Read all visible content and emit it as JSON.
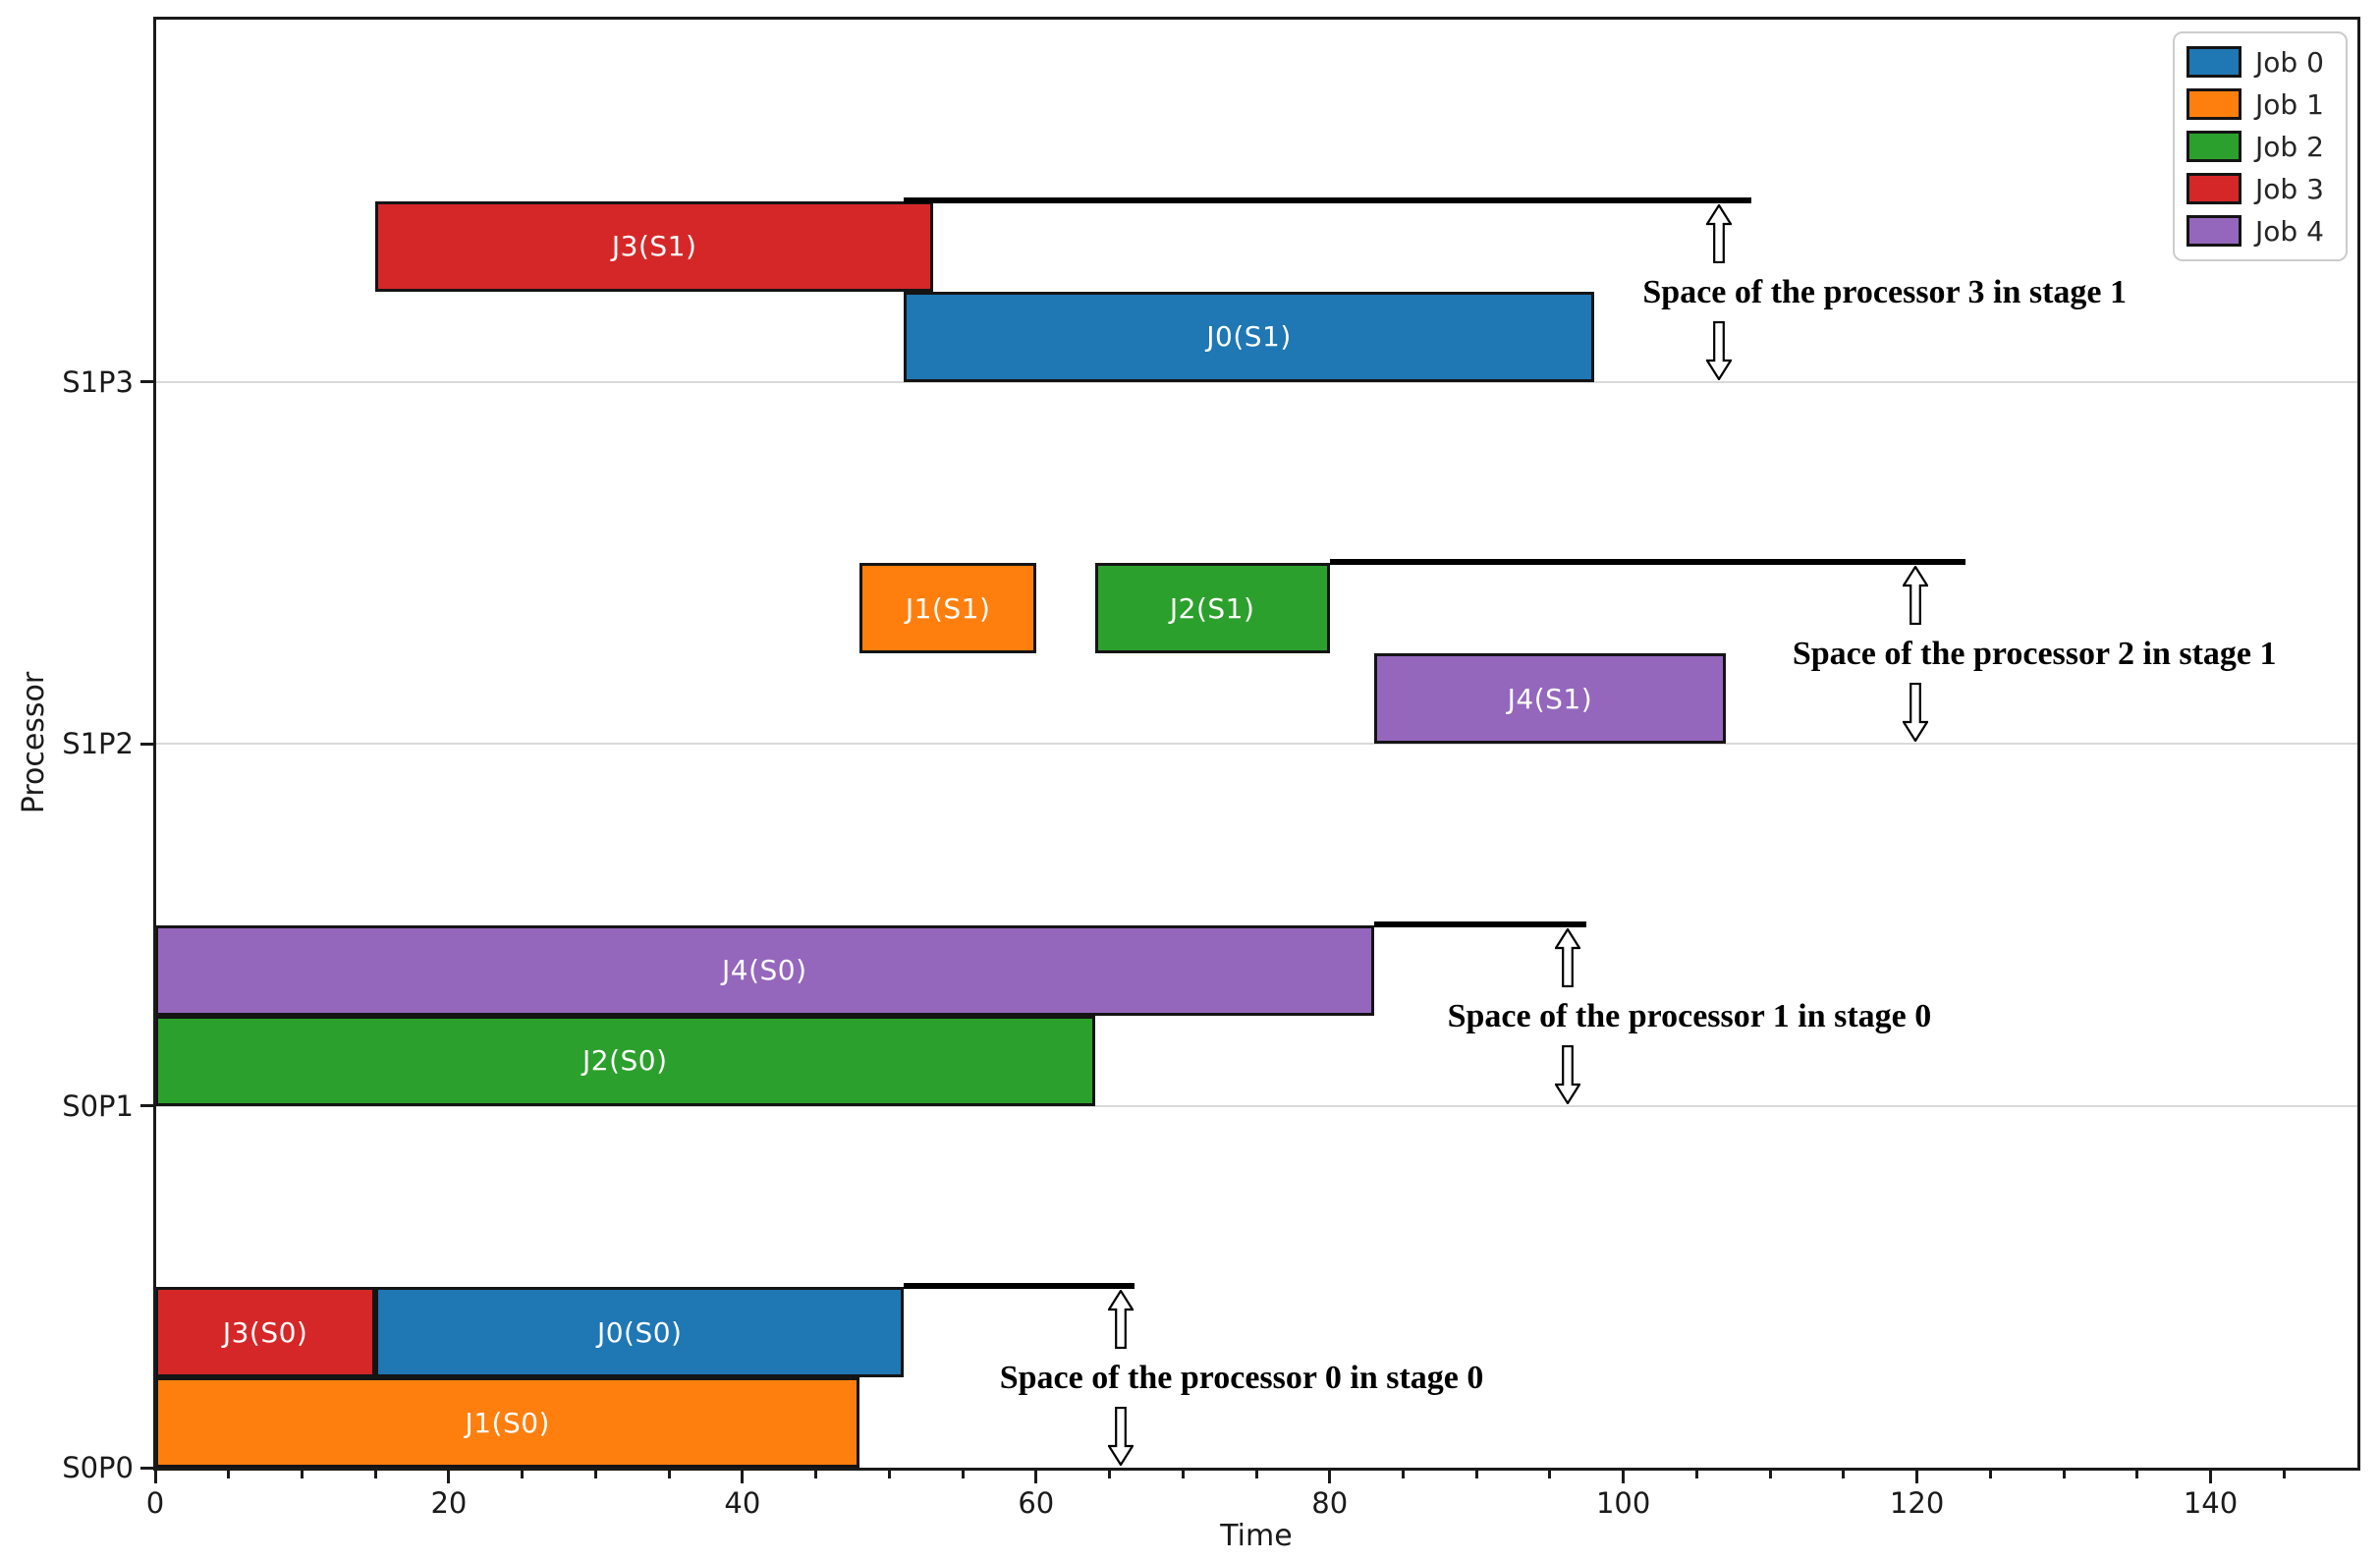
{
  "chart_data": {
    "type": "bar",
    "subtype": "gantt-broken-barh",
    "title": "",
    "xlabel": "Time",
    "ylabel": "Processor",
    "xlim": [
      0,
      150
    ],
    "x_major_ticks": [
      0,
      20,
      40,
      60,
      80,
      100,
      120,
      140
    ],
    "x_minor_step": 5,
    "grid": "horizontal-light-gray",
    "legend_position": "upper-right",
    "rows": [
      "S0P0",
      "S0P1",
      "S1P2",
      "S1P3"
    ],
    "jobs": [
      {
        "name": "Job 0",
        "color": "#1f77b4"
      },
      {
        "name": "Job 1",
        "color": "#ff7f0e"
      },
      {
        "name": "Job 2",
        "color": "#2ca02c"
      },
      {
        "name": "Job 3",
        "color": "#d62728"
      },
      {
        "name": "Job 4",
        "color": "#9467bd"
      }
    ],
    "tasks": [
      {
        "row": "S0P0",
        "lane": "upper",
        "job": 3,
        "label": "J3(S0)",
        "start": 0,
        "end": 15
      },
      {
        "row": "S0P0",
        "lane": "upper",
        "job": 0,
        "label": "J0(S0)",
        "start": 15,
        "end": 51
      },
      {
        "row": "S0P0",
        "lane": "lower",
        "job": 1,
        "label": "J1(S0)",
        "start": 0,
        "end": 48
      },
      {
        "row": "S0P1",
        "lane": "upper",
        "job": 4,
        "label": "J4(S0)",
        "start": 0,
        "end": 83
      },
      {
        "row": "S0P1",
        "lane": "lower",
        "job": 2,
        "label": "J2(S0)",
        "start": 0,
        "end": 64
      },
      {
        "row": "S1P2",
        "lane": "upper",
        "job": 1,
        "label": "J1(S1)",
        "start": 48,
        "end": 60
      },
      {
        "row": "S1P2",
        "lane": "upper",
        "job": 2,
        "label": "J2(S1)",
        "start": 64,
        "end": 80
      },
      {
        "row": "S1P2",
        "lane": "lower",
        "job": 4,
        "label": "J4(S1)",
        "start": 83,
        "end": 107
      },
      {
        "row": "S1P3",
        "lane": "upper",
        "job": 3,
        "label": "J3(S1)",
        "start": 15,
        "end": 53
      },
      {
        "row": "S1P3",
        "lane": "lower",
        "job": 0,
        "label": "J0(S1)",
        "start": 51,
        "end": 98
      }
    ],
    "space_lines": [
      {
        "row": "S0P0",
        "start": 51,
        "end": 66.7
      },
      {
        "row": "S0P1",
        "start": 83,
        "end": 97.5
      },
      {
        "row": "S1P2",
        "start": 80,
        "end": 123.3
      },
      {
        "row": "S1P3",
        "start": 51,
        "end": 108.7
      }
    ],
    "annotations": [
      {
        "row": "S0P0",
        "text": "Space of the processor 0 in stage 0",
        "arrow_t": 65.8,
        "text_center_t": 74
      },
      {
        "row": "S0P1",
        "text": "Space of the processor 1 in stage 0",
        "arrow_t": 96.2,
        "text_center_t": 104.5
      },
      {
        "row": "S1P2",
        "text": "Space of the processor 2 in stage 1",
        "arrow_t": 119.9,
        "text_center_t": 128
      },
      {
        "row": "S1P3",
        "text": "Space of the processor 3 in stage 1",
        "arrow_t": 106.5,
        "text_center_t": 117.8
      }
    ],
    "colors": {
      "bar_edge": "#141414",
      "spine": "#1a1a1a",
      "gridline": "#d9d9d9",
      "space_line": "#000000",
      "annotation_text": "#000000",
      "bar_label_text": "#ffffff"
    }
  }
}
